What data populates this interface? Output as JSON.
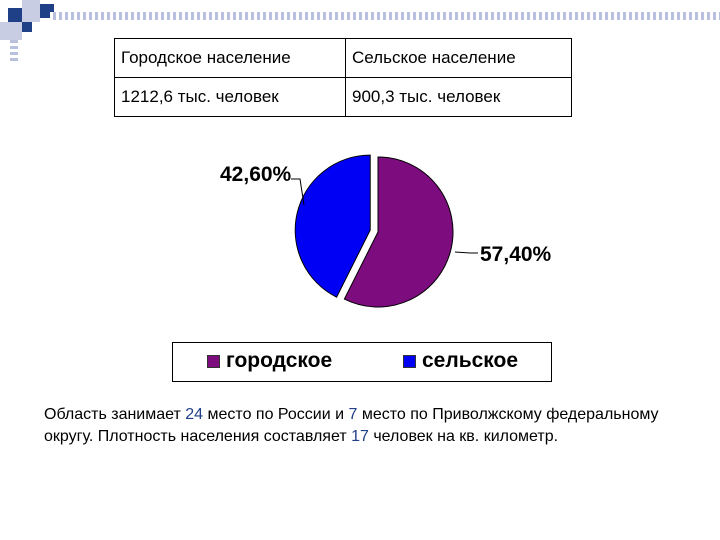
{
  "table": {
    "headers": [
      "Городское население",
      "Сельское население"
    ],
    "values": [
      "1212,6 тыс. человек",
      "900,3 тыс. человек"
    ]
  },
  "chart_data": {
    "type": "pie",
    "categories": [
      "городское",
      "сельское"
    ],
    "values": [
      57.4,
      42.6
    ],
    "labels": [
      "57,40%",
      "42,60%"
    ],
    "colors": [
      "#7d0c7f",
      "#0000f5"
    ],
    "legend": [
      "городское",
      "сельское"
    ],
    "legend_position": "bottom",
    "exploded": "сельское"
  },
  "description": {
    "p1": "Область занимает ",
    "n1": "24",
    "p2": " место по России и ",
    "n2": "7",
    "p3": " место по Приволжскому федеральному округу. Плотность населения составляет ",
    "n3": "17",
    "p4": " человек на кв. километр."
  }
}
